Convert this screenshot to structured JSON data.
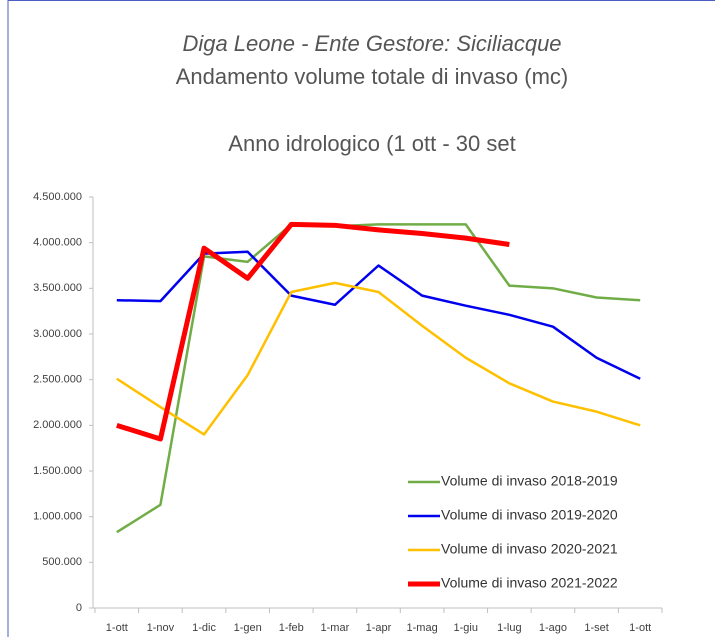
{
  "chart_data": {
    "type": "line",
    "title_lines": [
      "Diga Leone - Ente Gestore: Siciliacque",
      "Andamento volume totale di invaso (mc)",
      "Anno idrologico (1 ott - 30 set"
    ],
    "categories": [
      "1-ott",
      "1-nov",
      "1-dic",
      "1-gen",
      "1-feb",
      "1-mar",
      "1-apr",
      "1-mag",
      "1-giu",
      "1-lug",
      "1-ago",
      "1-set",
      "1-ott"
    ],
    "series": [
      {
        "name": "Volume di invaso 2018-2019",
        "color": "#70ad47",
        "width": 2.5,
        "values": [
          830000,
          1130000,
          3850000,
          3790000,
          4200000,
          4180000,
          4200000,
          4200000,
          4200000,
          3530000,
          3500000,
          3400000,
          3370000
        ]
      },
      {
        "name": "Volume di invaso 2019-2020",
        "color": "#0000ee",
        "width": 2.5,
        "values": [
          3370000,
          3360000,
          3880000,
          3900000,
          3420000,
          3320000,
          3750000,
          3420000,
          3310000,
          3210000,
          3080000,
          2740000,
          2510000
        ]
      },
      {
        "name": "Volume di invaso 2020-2021",
        "color": "#ffc000",
        "width": 2.5,
        "values": [
          2510000,
          2200000,
          1900000,
          2550000,
          3460000,
          3560000,
          3460000,
          3090000,
          2740000,
          2460000,
          2260000,
          2150000,
          2000000
        ]
      },
      {
        "name": "Volume di invaso 2021-2022",
        "color": "#ff0000",
        "width": 5,
        "values": [
          2000000,
          1850000,
          3940000,
          3610000,
          4200000,
          4190000,
          4140000,
          4100000,
          4050000,
          3980000,
          null,
          null,
          null
        ]
      }
    ],
    "ylim": [
      0,
      4500000
    ],
    "yticks": [
      0,
      {
        "value": 500000,
        "label": "500.000"
      },
      {
        "value": 1000000,
        "label": "1.000.000"
      },
      {
        "value": 1500000,
        "label": "1.500.000"
      },
      {
        "value": 2000000,
        "label": "2.000.000"
      },
      {
        "value": 2500000,
        "label": "2.500.000"
      },
      {
        "value": 3000000,
        "label": "3.000.000"
      },
      {
        "value": 3500000,
        "label": "3.500.000"
      },
      {
        "value": 4000000,
        "label": "4.000.000"
      },
      {
        "value": 4500000,
        "label": "4.500.000"
      }
    ],
    "grid": false,
    "legend": "lower right"
  }
}
